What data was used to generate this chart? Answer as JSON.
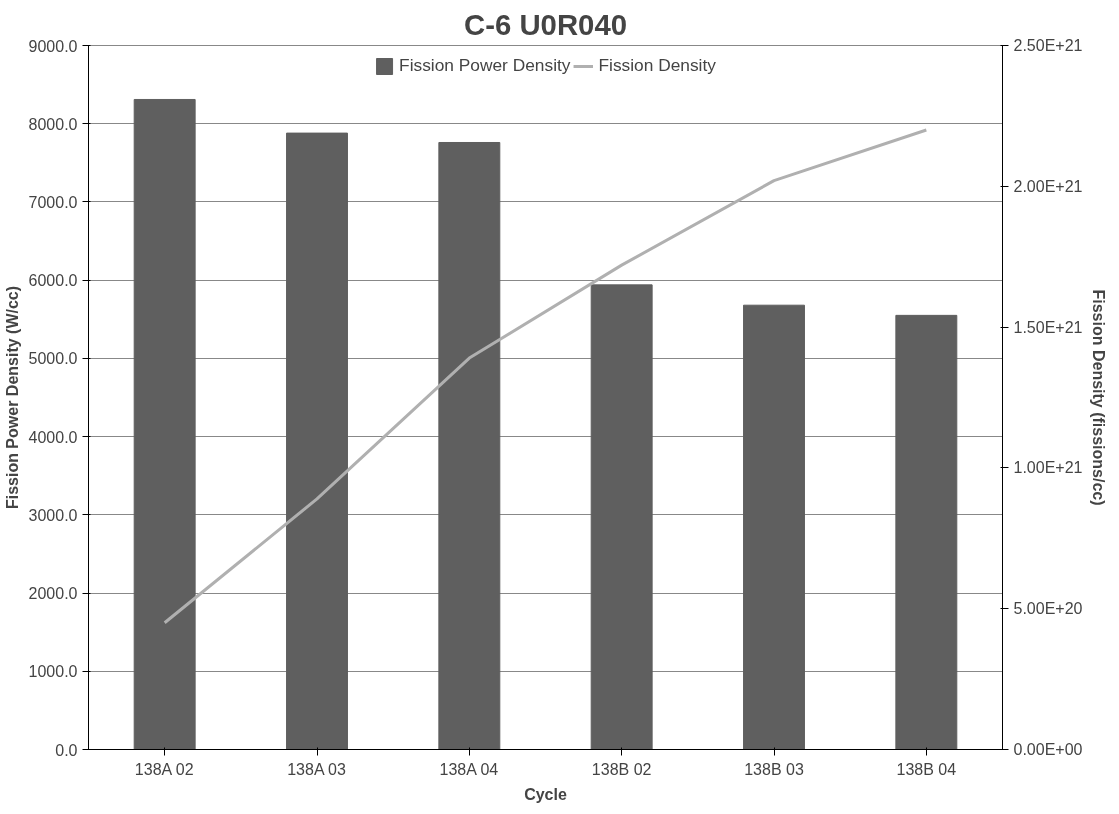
{
  "chart_data": {
    "type": "bar",
    "title": "C-6 U0R040",
    "xlabel": "Cycle",
    "ylabel": "Fission Power Density (W/cc)",
    "y2label": "Fission Density (fissions/cc)",
    "categories": [
      "138A 02",
      "138A 03",
      "138A 04",
      "138B 02",
      "138B 03",
      "138B 04"
    ],
    "series": [
      {
        "name": "Fission Power Density",
        "color": "#5f5f5f",
        "values": [
          8310,
          7880,
          7760,
          5940,
          5680,
          5550
        ]
      },
      {
        "name": "Fission Density",
        "type": "line",
        "axis": "y2",
        "color": "#b0b0b0",
        "values": [
          4.5e+20,
          8.9e+20,
          1.39e+21,
          1.72e+21,
          2.02e+21,
          2.2e+21
        ]
      }
    ],
    "ylim": [
      0,
      9000
    ],
    "yticks": [
      {
        "value": 0,
        "label": "0.0"
      },
      {
        "value": 1000,
        "label": "1000.0"
      },
      {
        "value": 2000,
        "label": "2000.0"
      },
      {
        "value": 3000,
        "label": "3000.0"
      },
      {
        "value": 4000,
        "label": "4000.0"
      },
      {
        "value": 5000,
        "label": "5000.0"
      },
      {
        "value": 6000,
        "label": "6000.0"
      },
      {
        "value": 7000,
        "label": "7000.0"
      },
      {
        "value": 8000,
        "label": "8000.0"
      },
      {
        "value": 9000,
        "label": "9000.0"
      }
    ],
    "y2lim": [
      0,
      2.5e+21
    ],
    "y2ticks": [
      {
        "value": 0,
        "label": "0.00E+00"
      },
      {
        "value": 5e+20,
        "label": "5.00E+20"
      },
      {
        "value": 1e+21,
        "label": "1.00E+21"
      },
      {
        "value": 1.5e+21,
        "label": "1.50E+21"
      },
      {
        "value": 2e+21,
        "label": "2.00E+21"
      },
      {
        "value": 2.5e+21,
        "label": "2.50E+21"
      }
    ],
    "grid": "y",
    "legend": "top",
    "marker": "none"
  }
}
